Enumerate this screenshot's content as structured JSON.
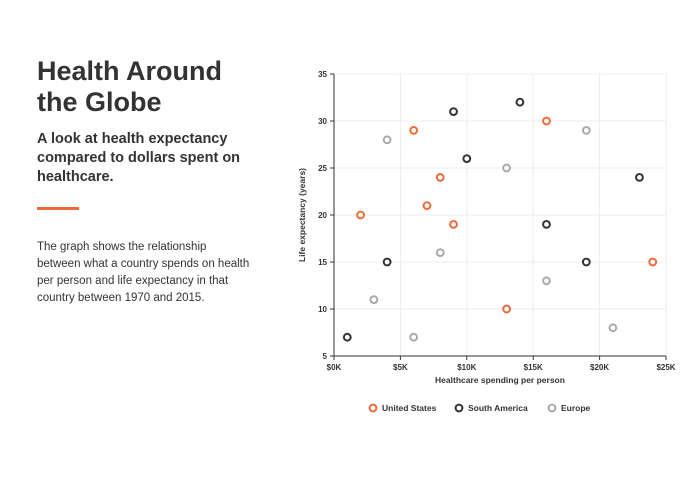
{
  "panel": {
    "title_line1": "Health Around",
    "title_line2": "the Globe",
    "subtitle": "A look at health expectancy compared to dollars spent on healthcare.",
    "description": "The graph shows the relationship between what a country spends on health per person and life expectancy in that country between 1970 and 2015.",
    "accent_color": "#ef6a3a"
  },
  "chart_data": {
    "type": "scatter",
    "xlabel": "Healthcare spending per person",
    "ylabel": "Life expectancy (years)",
    "xlim": [
      0,
      25000
    ],
    "ylim": [
      5,
      35
    ],
    "x_ticks": [
      0,
      5000,
      10000,
      15000,
      20000,
      25000
    ],
    "x_tick_labels": [
      "$0K",
      "$5K",
      "$10K",
      "$15K",
      "$20K",
      "$25K"
    ],
    "y_ticks": [
      5,
      10,
      15,
      20,
      25,
      30,
      35
    ],
    "y_tick_labels": [
      "5",
      "10",
      "15",
      "20",
      "25",
      "30",
      "35"
    ],
    "grid": true,
    "legend_position": "bottom",
    "series": [
      {
        "name": "United States",
        "color": "#ef6a3a",
        "points": [
          {
            "x": 2000,
            "y": 20
          },
          {
            "x": 6000,
            "y": 29
          },
          {
            "x": 7000,
            "y": 21
          },
          {
            "x": 8000,
            "y": 24
          },
          {
            "x": 9000,
            "y": 19
          },
          {
            "x": 13000,
            "y": 10
          },
          {
            "x": 16000,
            "y": 30
          },
          {
            "x": 24000,
            "y": 15
          }
        ]
      },
      {
        "name": "South America",
        "color": "#333333",
        "points": [
          {
            "x": 1000,
            "y": 7
          },
          {
            "x": 4000,
            "y": 15
          },
          {
            "x": 9000,
            "y": 31
          },
          {
            "x": 10000,
            "y": 26
          },
          {
            "x": 14000,
            "y": 32
          },
          {
            "x": 16000,
            "y": 19
          },
          {
            "x": 19000,
            "y": 15
          },
          {
            "x": 23000,
            "y": 24
          }
        ]
      },
      {
        "name": "Europe",
        "color": "#aaaaaa",
        "points": [
          {
            "x": 3000,
            "y": 11
          },
          {
            "x": 4000,
            "y": 28
          },
          {
            "x": 6000,
            "y": 7
          },
          {
            "x": 8000,
            "y": 16
          },
          {
            "x": 13000,
            "y": 25
          },
          {
            "x": 16000,
            "y": 13
          },
          {
            "x": 19000,
            "y": 29
          },
          {
            "x": 21000,
            "y": 8
          }
        ]
      }
    ]
  }
}
